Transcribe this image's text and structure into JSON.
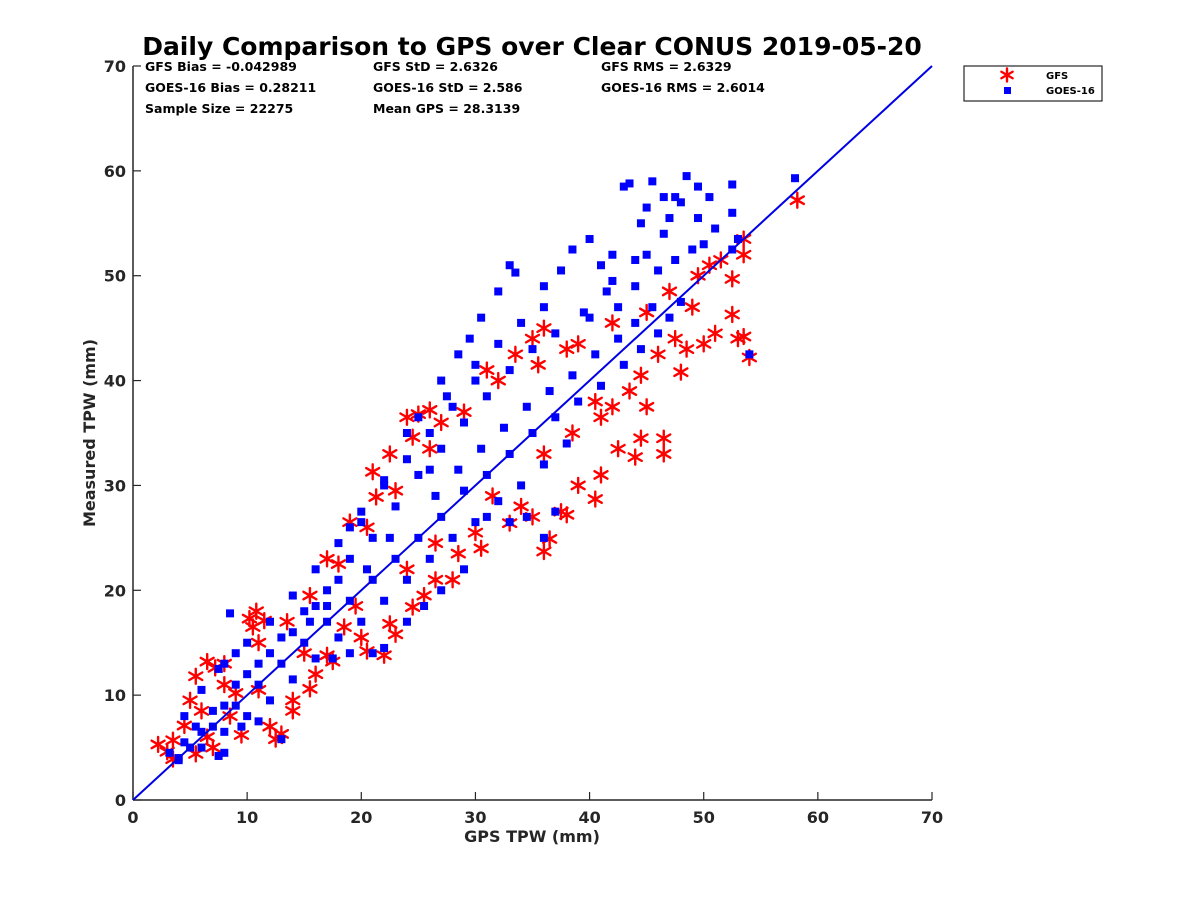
{
  "chart_data": {
    "type": "scatter",
    "title": "Daily Comparison to GPS over Clear CONUS 2019-05-20",
    "xlabel": "GPS TPW (mm)",
    "ylabel": "Measured TPW (mm)",
    "xlim": [
      0,
      70
    ],
    "ylim": [
      0,
      70
    ],
    "xticks": [
      0,
      10,
      20,
      30,
      40,
      50,
      60,
      70
    ],
    "yticks": [
      0,
      10,
      20,
      30,
      40,
      50,
      60,
      70
    ],
    "grid": false,
    "legend_position": "top-right outside",
    "stats": [
      [
        "GFS Bias = -0.042989",
        "GFS StD = 2.6326",
        "GFS RMS = 2.6329"
      ],
      [
        "GOES-16 Bias = 0.28211",
        "GOES-16 StD = 2.586",
        "GOES-16 RMS = 2.6014"
      ],
      [
        "Sample Size = 22275",
        "Mean GPS = 28.3139"
      ]
    ],
    "reference_line": {
      "x": [
        0,
        70
      ],
      "y": [
        0,
        70
      ],
      "color": "#0000e6"
    },
    "series": [
      {
        "name": "GFS",
        "marker": "asterisk",
        "color": "#ff0000",
        "points": [
          [
            2.2,
            5.3
          ],
          [
            3.0,
            4.6
          ],
          [
            3.5,
            5.7
          ],
          [
            4.5,
            7.1
          ],
          [
            5.0,
            9.5
          ],
          [
            5.5,
            11.8
          ],
          [
            6.5,
            13.2
          ],
          [
            7.2,
            12.6
          ],
          [
            8.0,
            11.0
          ],
          [
            9.0,
            10.2
          ],
          [
            10.2,
            17.3
          ],
          [
            10.8,
            18.0
          ],
          [
            11.5,
            17.1
          ],
          [
            10.5,
            16.5
          ],
          [
            12.5,
            5.8
          ],
          [
            13.0,
            6.3
          ],
          [
            14.0,
            8.5
          ],
          [
            15.5,
            10.6
          ],
          [
            17.5,
            13.2
          ],
          [
            17.0,
            13.8
          ],
          [
            17.0,
            23.0
          ],
          [
            19.0,
            26.5
          ],
          [
            21.0,
            31.3
          ],
          [
            21.3,
            28.9
          ],
          [
            22.5,
            33.0
          ],
          [
            24.0,
            36.5
          ],
          [
            24.5,
            34.6
          ],
          [
            25.0,
            36.8
          ],
          [
            26.0,
            37.2
          ],
          [
            27.0,
            36.0
          ],
          [
            18.5,
            16.5
          ],
          [
            20.5,
            14.2
          ],
          [
            22.0,
            13.8
          ],
          [
            23.0,
            15.8
          ],
          [
            24.5,
            18.4
          ],
          [
            26.5,
            21.0
          ],
          [
            28.5,
            23.5
          ],
          [
            30.0,
            25.5
          ],
          [
            33.0,
            26.4
          ],
          [
            35.0,
            27.0
          ],
          [
            36.0,
            23.7
          ],
          [
            36.5,
            24.9
          ],
          [
            37.5,
            27.5
          ],
          [
            38.0,
            27.2
          ],
          [
            39.0,
            30.0
          ],
          [
            40.5,
            28.7
          ],
          [
            41.0,
            31.0
          ],
          [
            42.5,
            33.5
          ],
          [
            44.0,
            32.7
          ],
          [
            44.5,
            34.5
          ],
          [
            31.0,
            41.0
          ],
          [
            33.5,
            42.5
          ],
          [
            35.0,
            44.0
          ],
          [
            36.0,
            45.0
          ],
          [
            38.0,
            43.0
          ],
          [
            40.5,
            38.0
          ],
          [
            42.0,
            37.5
          ],
          [
            44.5,
            40.5
          ],
          [
            46.0,
            42.5
          ],
          [
            47.5,
            44.0
          ],
          [
            48.0,
            40.8
          ],
          [
            48.5,
            43.0
          ],
          [
            50.0,
            43.5
          ],
          [
            51.0,
            44.5
          ],
          [
            52.5,
            46.3
          ],
          [
            53.0,
            44.0
          ],
          [
            53.5,
            44.2
          ],
          [
            54.0,
            42.2
          ],
          [
            52.5,
            49.7
          ],
          [
            53.5,
            52.0
          ],
          [
            53.5,
            53.5
          ],
          [
            49.5,
            50.0
          ],
          [
            50.5,
            51.0
          ],
          [
            51.5,
            51.5
          ],
          [
            58.2,
            57.2
          ],
          [
            45.0,
            37.5
          ],
          [
            46.5,
            34.5
          ],
          [
            46.5,
            33.0
          ],
          [
            34.0,
            28.0
          ],
          [
            30.5,
            24.0
          ],
          [
            28.0,
            21.0
          ],
          [
            25.5,
            19.5
          ],
          [
            22.5,
            16.8
          ],
          [
            20.0,
            15.5
          ],
          [
            16.0,
            12.0
          ],
          [
            14.0,
            9.5
          ],
          [
            12.0,
            7.0
          ],
          [
            9.5,
            6.2
          ],
          [
            7.0,
            5.0
          ],
          [
            5.5,
            4.4
          ],
          [
            3.5,
            3.9
          ],
          [
            6.0,
            8.5
          ],
          [
            8.0,
            13.0
          ],
          [
            11.0,
            15.0
          ],
          [
            13.5,
            17.0
          ],
          [
            15.5,
            19.5
          ],
          [
            18.0,
            22.5
          ],
          [
            20.5,
            26.0
          ],
          [
            23.0,
            29.5
          ],
          [
            26.0,
            33.5
          ],
          [
            29.0,
            37.0
          ],
          [
            32.0,
            40.0
          ],
          [
            35.5,
            41.5
          ],
          [
            39.0,
            43.5
          ],
          [
            42.0,
            45.5
          ],
          [
            45.0,
            46.5
          ],
          [
            47.0,
            48.5
          ],
          [
            49.0,
            47.0
          ],
          [
            26.5,
            24.5
          ],
          [
            31.5,
            29.0
          ],
          [
            36.0,
            33.0
          ],
          [
            38.5,
            35.0
          ],
          [
            41.0,
            36.5
          ],
          [
            43.5,
            39.0
          ],
          [
            24.0,
            22.0
          ],
          [
            19.5,
            18.5
          ],
          [
            15.0,
            14.0
          ],
          [
            11.0,
            10.5
          ],
          [
            8.5,
            8.0
          ],
          [
            6.5,
            6.0
          ]
        ]
      },
      {
        "name": "GOES-16",
        "marker": "square",
        "color": "#0000ff",
        "points": [
          [
            58.0,
            59.3
          ],
          [
            54.0,
            42.5
          ],
          [
            43.0,
            58.5
          ],
          [
            43.5,
            58.8
          ],
          [
            45.5,
            59.0
          ],
          [
            46.5,
            57.5
          ],
          [
            48.5,
            59.5
          ],
          [
            49.5,
            58.5
          ],
          [
            50.5,
            57.5
          ],
          [
            52.5,
            58.7
          ],
          [
            47.0,
            55.5
          ],
          [
            47.5,
            57.5
          ],
          [
            48.0,
            57.0
          ],
          [
            49.5,
            55.5
          ],
          [
            51.0,
            54.5
          ],
          [
            52.5,
            56.0
          ],
          [
            53.0,
            53.5
          ],
          [
            52.5,
            52.5
          ],
          [
            45.0,
            56.5
          ],
          [
            44.5,
            55.0
          ],
          [
            40.0,
            53.5
          ],
          [
            38.5,
            52.5
          ],
          [
            41.0,
            51.0
          ],
          [
            42.0,
            52.0
          ],
          [
            37.5,
            50.5
          ],
          [
            36.0,
            49.0
          ],
          [
            33.5,
            50.3
          ],
          [
            33.0,
            51.0
          ],
          [
            32.0,
            48.5
          ],
          [
            30.5,
            46.0
          ],
          [
            29.5,
            44.0
          ],
          [
            28.5,
            42.5
          ],
          [
            30.0,
            41.5
          ],
          [
            27.0,
            40.0
          ],
          [
            27.5,
            38.5
          ],
          [
            37.0,
            27.5
          ],
          [
            36.0,
            25.0
          ],
          [
            34.5,
            27.0
          ],
          [
            33.0,
            26.5
          ],
          [
            31.0,
            27.0
          ],
          [
            29.0,
            22.0
          ],
          [
            27.0,
            20.0
          ],
          [
            25.5,
            18.5
          ],
          [
            24.0,
            17.0
          ],
          [
            22.0,
            14.5
          ],
          [
            21.0,
            14.0
          ],
          [
            19.0,
            14.0
          ],
          [
            17.5,
            13.5
          ],
          [
            13.0,
            5.8
          ],
          [
            11.0,
            7.5
          ],
          [
            9.5,
            7.0
          ],
          [
            8.0,
            4.5
          ],
          [
            7.5,
            4.2
          ],
          [
            4.0,
            3.8
          ],
          [
            3.2,
            4.5
          ],
          [
            4.5,
            5.5
          ],
          [
            8.5,
            17.8
          ],
          [
            9.0,
            14.0
          ],
          [
            7.5,
            12.5
          ],
          [
            19.0,
            26.0
          ],
          [
            20.0,
            26.5
          ],
          [
            24.0,
            35.0
          ],
          [
            25.0,
            36.5
          ],
          [
            26.0,
            31.5
          ],
          [
            22.0,
            30.5
          ],
          [
            18.0,
            21.0
          ],
          [
            16.0,
            18.5
          ],
          [
            14.0,
            16.0
          ],
          [
            12.0,
            14.0
          ],
          [
            10.0,
            12.0
          ],
          [
            6.0,
            6.5
          ],
          [
            8.0,
            9.0
          ],
          [
            15.5,
            17.0
          ],
          [
            17.0,
            18.5
          ],
          [
            20.5,
            22.0
          ],
          [
            22.5,
            25.0
          ],
          [
            26.5,
            29.0
          ],
          [
            28.5,
            31.5
          ],
          [
            30.5,
            33.5
          ],
          [
            32.5,
            35.5
          ],
          [
            34.5,
            37.5
          ],
          [
            36.5,
            39.0
          ],
          [
            38.5,
            40.5
          ],
          [
            40.5,
            42.5
          ],
          [
            42.5,
            44.0
          ],
          [
            44.0,
            45.5
          ],
          [
            45.5,
            47.0
          ],
          [
            41.5,
            48.5
          ],
          [
            39.5,
            46.5
          ],
          [
            37.0,
            44.5
          ],
          [
            35.0,
            43.0
          ],
          [
            33.0,
            41.0
          ],
          [
            31.0,
            38.5
          ],
          [
            29.0,
            36.0
          ],
          [
            27.0,
            33.5
          ],
          [
            25.0,
            31.0
          ],
          [
            23.0,
            28.0
          ],
          [
            21.0,
            25.0
          ],
          [
            19.0,
            23.0
          ],
          [
            17.0,
            20.0
          ],
          [
            15.0,
            18.0
          ],
          [
            13.0,
            15.5
          ],
          [
            11.0,
            13.0
          ],
          [
            9.0,
            11.0
          ],
          [
            7.0,
            8.5
          ],
          [
            5.5,
            7.0
          ],
          [
            43.0,
            41.5
          ],
          [
            41.0,
            39.5
          ],
          [
            39.0,
            38.0
          ],
          [
            37.0,
            36.5
          ],
          [
            35.0,
            35.0
          ],
          [
            33.0,
            33.0
          ],
          [
            31.0,
            31.0
          ],
          [
            29.0,
            29.5
          ],
          [
            27.0,
            27.0
          ],
          [
            25.0,
            25.0
          ],
          [
            23.0,
            23.0
          ],
          [
            21.0,
            21.0
          ],
          [
            19.0,
            19.0
          ],
          [
            17.0,
            17.0
          ],
          [
            15.0,
            15.0
          ],
          [
            13.0,
            13.0
          ],
          [
            11.0,
            11.0
          ],
          [
            9.0,
            9.0
          ],
          [
            7.0,
            7.0
          ],
          [
            5.0,
            5.0
          ],
          [
            44.5,
            43.0
          ],
          [
            46.0,
            44.5
          ],
          [
            47.0,
            46.0
          ],
          [
            48.0,
            47.5
          ],
          [
            46.0,
            50.5
          ],
          [
            47.5,
            51.5
          ],
          [
            49.0,
            52.5
          ],
          [
            50.0,
            53.0
          ],
          [
            44.0,
            49.0
          ],
          [
            42.5,
            47.0
          ],
          [
            45.0,
            52.0
          ],
          [
            46.5,
            54.0
          ],
          [
            38.0,
            34.0
          ],
          [
            36.0,
            32.0
          ],
          [
            34.0,
            30.0
          ],
          [
            32.0,
            28.5
          ],
          [
            30.0,
            26.5
          ],
          [
            28.0,
            25.0
          ],
          [
            26.0,
            23.0
          ],
          [
            24.0,
            21.0
          ],
          [
            22.0,
            19.0
          ],
          [
            20.0,
            17.0
          ],
          [
            18.0,
            15.5
          ],
          [
            16.0,
            13.5
          ],
          [
            14.0,
            11.5
          ],
          [
            12.0,
            9.5
          ],
          [
            10.0,
            8.0
          ],
          [
            8.0,
            6.5
          ],
          [
            6.0,
            5.0
          ],
          [
            4.0,
            4.0
          ],
          [
            40.0,
            46.0
          ],
          [
            42.0,
            49.5
          ],
          [
            44.0,
            51.5
          ],
          [
            36.0,
            47.0
          ],
          [
            34.0,
            45.5
          ],
          [
            32.0,
            43.5
          ],
          [
            30.0,
            40.0
          ],
          [
            28.0,
            37.5
          ],
          [
            26.0,
            35.0
          ],
          [
            24.0,
            32.5
          ],
          [
            22.0,
            30.0
          ],
          [
            20.0,
            27.5
          ],
          [
            18.0,
            24.5
          ],
          [
            16.0,
            22.0
          ],
          [
            14.0,
            19.5
          ],
          [
            12.0,
            17.0
          ],
          [
            10.0,
            15.0
          ],
          [
            8.0,
            13.0
          ],
          [
            6.0,
            10.5
          ],
          [
            4.5,
            8.0
          ]
        ]
      }
    ]
  }
}
